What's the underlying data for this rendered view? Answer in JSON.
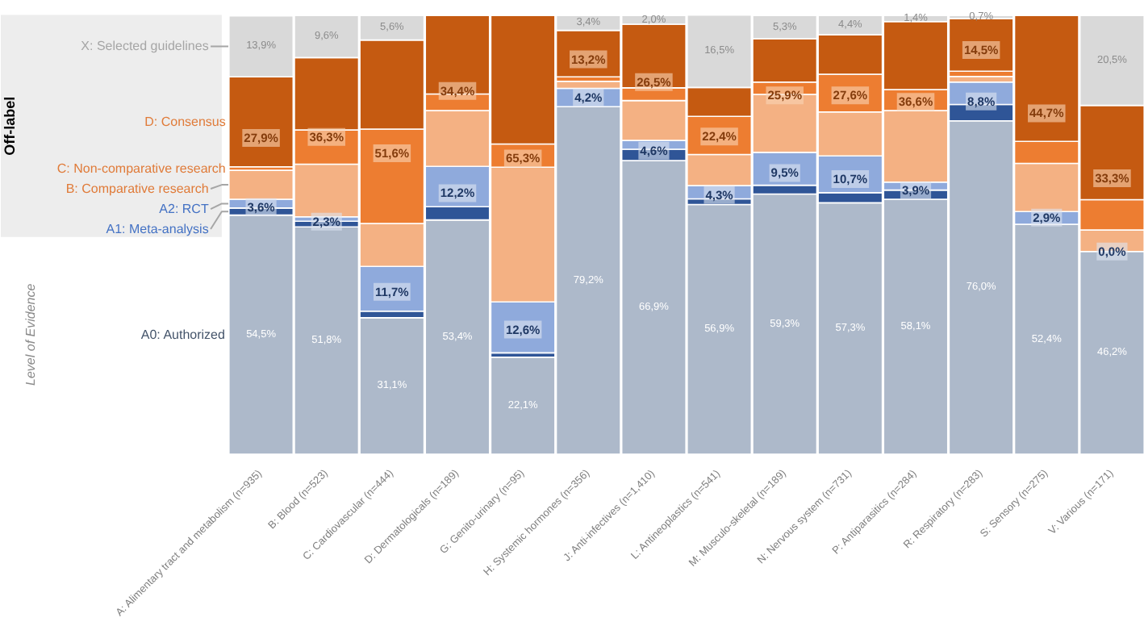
{
  "chart_data": {
    "type": "bar",
    "stacked": true,
    "tick_labels": "x",
    "categories": [
      "A: Alimentary tract and metabolism (n=935)",
      "B: Blood (n=523)",
      "C: Cardiovascular (n=444)",
      "D: Dermatologicals (n=189)",
      "G: Genito-urinary (n=95)",
      "H: Systemic hormones (n=356)",
      "J: Anti-infectives (n=1,410)",
      "L: Antineoplastics (n=541)",
      "M: Musculo-skeletal (n=189)",
      "N: Nervous system (n=731)",
      "P: Antiparasitics (n=284)",
      "R: Respiratory (n=283)",
      "S: Sensory (n=275)",
      "V: Various (n=171)"
    ],
    "series": [
      {
        "name": "A0: Authorized",
        "color": "#adb9ca",
        "values": [
          54.5,
          51.8,
          31.1,
          53.4,
          22.1,
          79.2,
          66.9,
          56.9,
          59.3,
          57.3,
          58.1,
          76.0,
          52.4,
          46.2
        ],
        "value_labels": [
          "54,5%",
          "51,8%",
          "31,1%",
          "53,4%",
          "22,1%",
          "79,2%",
          "66,9%",
          "56,9%",
          "59,3%",
          "57,3%",
          "58,1%",
          "76,0%",
          "52,4%",
          "46,2%"
        ]
      },
      {
        "name": "A1: Meta-analysis",
        "color": "#2f5597",
        "values": [
          1.6,
          1.3,
          1.5,
          3.0,
          1.0,
          0,
          2.6,
          1.3,
          2.0,
          2.3,
          2.1,
          3.7,
          0,
          0
        ]
      },
      {
        "name": "A2: RCT",
        "color": "#8faadc",
        "values": [
          2.0,
          1.0,
          10.2,
          9.2,
          11.6,
          4.2,
          2.0,
          3.0,
          7.5,
          8.4,
          1.8,
          5.1,
          2.9,
          0
        ]
      },
      {
        "name": "B: Comparative research",
        "color": "#f4b183",
        "values": [
          6.6,
          12.0,
          9.8,
          12.7,
          30.7,
          1.6,
          9.1,
          7.1,
          13.2,
          10.0,
          16.3,
          1.3,
          11.0,
          4.9
        ]
      },
      {
        "name": "C: Non-comparative research",
        "color": "#ed7d31",
        "values": [
          0.8,
          7.8,
          21.5,
          3.8,
          5.3,
          1.0,
          2.9,
          8.7,
          2.8,
          8.6,
          4.8,
          1.2,
          5.0,
          6.9
        ]
      },
      {
        "name": "D: Consensus",
        "color": "#c55a11",
        "values": [
          20.5,
          16.5,
          20.3,
          17.9,
          29.3,
          10.6,
          14.5,
          6.6,
          9.9,
          9.0,
          15.5,
          12.0,
          28.7,
          21.5
        ]
      },
      {
        "name": "X: Selected guidelines",
        "color": "#d9d9d9",
        "values": [
          13.9,
          9.6,
          5.6,
          0,
          0,
          3.4,
          2.0,
          16.5,
          5.3,
          4.4,
          1.4,
          0.7,
          0,
          20.5
        ],
        "value_labels": [
          "13,9%",
          "9,6%",
          "5,6%",
          null,
          null,
          "3,4%",
          "2,0%",
          "16,5%",
          "5,3%",
          "4,4%",
          "1,4%",
          "0,7%",
          null,
          "20,5%"
        ]
      }
    ],
    "annotations": [
      "Off-label",
      "Level of Evidence",
      {
        "text": "3,6%",
        "x": "A: Alimentary tract and metabolism (n=935)",
        "y": 56.3
      },
      {
        "text": "27,9%",
        "x": "A: Alimentary tract and metabolism (n=935)",
        "y": 72.1
      },
      {
        "text": "2,3%",
        "x": "B: Blood (n=523)",
        "y": 53.0
      },
      {
        "text": "36,3%",
        "x": "B: Blood (n=523)",
        "y": 72.3
      },
      {
        "text": "11,7%",
        "x": "C: Cardiovascular (n=444)",
        "y": 37.0
      },
      {
        "text": "51,6%",
        "x": "C: Cardiovascular (n=444)",
        "y": 68.6
      },
      {
        "text": "12,2%",
        "x": "D: Dermatologicals (n=189)",
        "y": 59.5
      },
      {
        "text": "34,4%",
        "x": "D: Dermatologicals (n=189)",
        "y": 82.8
      },
      {
        "text": "12,6%",
        "x": "G: Genito-urinary (n=95)",
        "y": 28.4
      },
      {
        "text": "65,3%",
        "x": "G: Genito-urinary (n=95)",
        "y": 67.4
      },
      {
        "text": "4,2%",
        "x": "H: Systemic hormones (n=356)",
        "y": 81.3
      },
      {
        "text": "13,2%",
        "x": "H: Systemic hormones (n=356)",
        "y": 90.0
      },
      {
        "text": "4,6%",
        "x": "J: Anti-infectives (n=1,410)",
        "y": 69.2
      },
      {
        "text": "26,5%",
        "x": "J: Anti-infectives (n=1,410)",
        "y": 84.8
      },
      {
        "text": "4,3%",
        "x": "L: Antineoplastics (n=541)",
        "y": 59.1
      },
      {
        "text": "22,4%",
        "x": "L: Antineoplastics (n=541)",
        "y": 72.4
      },
      {
        "text": "9,5%",
        "x": "M: Musculo-skeletal (n=189)",
        "y": 64.1
      },
      {
        "text": "25,9%",
        "x": "M: Musculo-skeletal (n=189)",
        "y": 81.8
      },
      {
        "text": "10,7%",
        "x": "N: Nervous system (n=731)",
        "y": 62.7
      },
      {
        "text": "27,6%",
        "x": "N: Nervous system (n=731)",
        "y": 81.8
      },
      {
        "text": "3,9%",
        "x": "P: Antiparasitics (n=284)",
        "y": 60.1
      },
      {
        "text": "36,6%",
        "x": "P: Antiparasitics (n=284)",
        "y": 80.3
      },
      {
        "text": "8,8%",
        "x": "R: Respiratory (n=283)",
        "y": 80.4
      },
      {
        "text": "14,5%",
        "x": "R: Respiratory (n=283)",
        "y": 92.1
      },
      {
        "text": "2,9%",
        "x": "S: Sensory (n=275)",
        "y": 53.9
      },
      {
        "text": "44,7%",
        "x": "S: Sensory (n=275)",
        "y": 77.7
      },
      {
        "text": "0,0%",
        "x": "V: Various (n=171)",
        "y": 46.2
      },
      {
        "text": "33,3%",
        "x": "V: Various (n=171)",
        "y": 62.9
      }
    ]
  }
}
